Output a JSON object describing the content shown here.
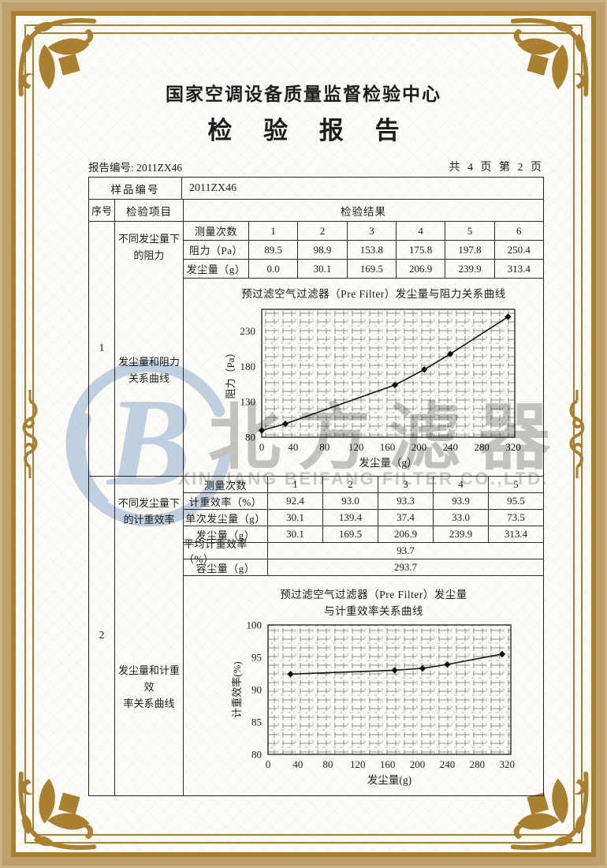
{
  "header": {
    "org_title": "国家空调设备质量监督检验中心",
    "report_title": "检 验 报 告",
    "report_no_label": "报告编号:",
    "report_no": "2011ZX46",
    "page_info": "共 4 页 第 2 页"
  },
  "info": {
    "sample_no_label": "样品编号",
    "sample_no": "2011ZX46",
    "seq_header": "序号",
    "item_header": "检验项目",
    "result_header": "检验结果"
  },
  "sections": [
    {
      "seq": "1",
      "item_top_lines": [
        "不同发尘量下",
        "的阻力"
      ],
      "item_mid_lines": [
        "发尘量和阻力",
        "关系曲线"
      ]
    },
    {
      "seq": "2",
      "item_top_lines": [
        "不同发尘量下",
        "的计重效率"
      ],
      "item_mid_lines": [
        "发尘量和计重效",
        "率关系曲线"
      ]
    }
  ],
  "tables": {
    "t1": {
      "label_width": 82,
      "rows": [
        {
          "label": "测量次数",
          "values": [
            "1",
            "2",
            "3",
            "4",
            "5",
            "6"
          ]
        },
        {
          "label": "阻力（Pa）",
          "values": [
            "89.5",
            "98.9",
            "153.8",
            "175.8",
            "197.8",
            "250.4"
          ]
        },
        {
          "label": "发尘量（g）",
          "values": [
            "0.0",
            "30.1",
            "169.5",
            "206.9",
            "239.9",
            "313.4"
          ]
        }
      ]
    },
    "t2": {
      "label_width": 106,
      "rows": [
        {
          "label": "测量次数",
          "values": [
            "1",
            "2",
            "3",
            "4",
            "5"
          ]
        },
        {
          "label": "计重效率（%）",
          "values": [
            "92.4",
            "93.0",
            "93.3",
            "93.9",
            "95.5"
          ]
        },
        {
          "label": "单次发尘量（g）",
          "values": [
            "30.1",
            "139.4",
            "37.4",
            "33.0",
            "73.5"
          ]
        },
        {
          "label": "发尘量（g）",
          "values": [
            "30.1",
            "169.5",
            "206.9",
            "239.9",
            "313.4"
          ]
        },
        {
          "label": "平均计重效率（%）",
          "merged": "93.7"
        },
        {
          "label": "容尘量（g）",
          "merged": "293.7"
        }
      ]
    }
  },
  "chart_data": [
    {
      "type": "line",
      "title": "预过滤空气过滤器（Pre Filter）发尘量与阻力关系曲线",
      "title_lines": [
        "预过滤空气过滤器（Pre Filter）发尘量与阻力关系曲线"
      ],
      "xlabel": "发尘量（g）",
      "ylabel": "阻力（Pa）",
      "x": [
        0,
        30.1,
        169.5,
        206.9,
        239.9,
        313.4
      ],
      "y": [
        89.5,
        98.9,
        153.8,
        175.8,
        197.8,
        250.4
      ],
      "xlim": [
        0,
        322
      ],
      "ylim": [
        80,
        261
      ],
      "xticks": [
        0,
        40,
        80,
        120,
        160,
        200,
        240,
        280,
        320
      ],
      "yticks": [
        80,
        130,
        180,
        230
      ],
      "grid": true,
      "legend": "none",
      "marker": "diamond"
    },
    {
      "type": "line",
      "title": "预过滤空气过滤器（Pre Filter）发尘量 与计重效率关系曲线",
      "title_lines": [
        "预过滤空气过滤器（Pre Filter）发尘量",
        "与计重效率关系曲线"
      ],
      "xlabel": "发尘量(g)",
      "ylabel": "计重效率(%)",
      "x": [
        30.1,
        169.5,
        206.9,
        239.9,
        313.4
      ],
      "y": [
        92.4,
        93.0,
        93.3,
        93.9,
        95.5
      ],
      "xlim": [
        0,
        325
      ],
      "ylim": [
        80,
        100
      ],
      "xticks": [
        0,
        40,
        80,
        120,
        160,
        200,
        240,
        280,
        320
      ],
      "yticks": [
        80,
        85,
        90,
        95,
        100
      ],
      "grid": true,
      "legend": "none",
      "marker": "diamond"
    }
  ],
  "watermark": {
    "cn": "北方滤器",
    "en": "XINXIANG BEIFANG FILTER CO.,LTD.",
    "logo_letter": "B",
    "logo_color": "#c4d4e8",
    "text_color": "#c6c6c6"
  },
  "frame": {
    "tan": "#bfa06c",
    "gold": "#a8802f",
    "paper": "#fcfbf7",
    "ink": "#1c1c1c"
  }
}
